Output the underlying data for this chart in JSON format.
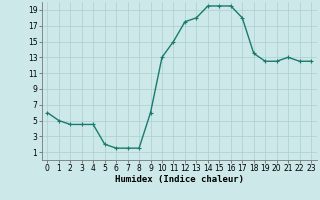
{
  "x": [
    0,
    1,
    2,
    3,
    4,
    5,
    6,
    7,
    8,
    9,
    10,
    11,
    12,
    13,
    14,
    15,
    16,
    17,
    18,
    19,
    20,
    21,
    22,
    23
  ],
  "y": [
    6,
    5,
    4.5,
    4.5,
    4.5,
    2,
    1.5,
    1.5,
    1.5,
    6,
    13,
    15,
    17.5,
    18,
    19.5,
    19.5,
    19.5,
    18,
    13.5,
    12.5,
    12.5,
    13,
    12.5,
    12.5
  ],
  "line_color": "#1a7a6e",
  "marker_color": "#1a7a6e",
  "bg_color": "#cce8e8",
  "grid_color": "#aacfcf",
  "xlabel": "Humidex (Indice chaleur)",
  "xlim": [
    -0.5,
    23.5
  ],
  "ylim": [
    0,
    20
  ],
  "yticks": [
    1,
    3,
    5,
    7,
    9,
    11,
    13,
    15,
    17,
    19
  ],
  "xticks": [
    0,
    1,
    2,
    3,
    4,
    5,
    6,
    7,
    8,
    9,
    10,
    11,
    12,
    13,
    14,
    15,
    16,
    17,
    18,
    19,
    20,
    21,
    22,
    23
  ],
  "tick_fontsize": 5.5,
  "xlabel_fontsize": 6.5,
  "marker_size": 3,
  "line_width": 1.0
}
